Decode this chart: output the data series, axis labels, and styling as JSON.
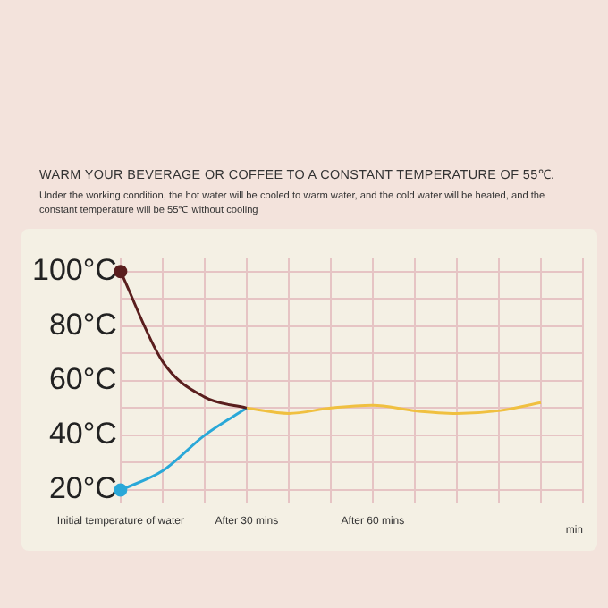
{
  "chart_data": {
    "type": "line",
    "title": "WARM YOUR BEVERAGE OR COFFEE TO A CONSTANT TEMPERATURE OF 55℃.",
    "subtitle": "Under the working condition, the hot water will be cooled to warm water, and the cold water will be heated, and the constant temperature will be 55℃ without cooling",
    "xlabel": "min",
    "categories": [
      "Initial temperature of water",
      null,
      null,
      "After 30 mins",
      null,
      null,
      "After 60 mins",
      null,
      null,
      null,
      null,
      null
    ],
    "series": [
      {
        "color": "#5a1e1e",
        "values": [
          100,
          67,
          54,
          50,
          null,
          null,
          null,
          null,
          null,
          null,
          null,
          null
        ]
      },
      {
        "color": "#2aa8d8",
        "values": [
          20,
          27,
          40,
          50,
          null,
          null,
          null,
          null,
          null,
          null,
          null,
          null
        ]
      },
      {
        "color": "#f0c040",
        "values": [
          null,
          null,
          null,
          50,
          48,
          50,
          51,
          49,
          48,
          49,
          52,
          null
        ]
      },
      {
        "type": "scatter",
        "color": "#5a1e1e",
        "marker": "circle",
        "values": [
          100,
          null,
          null,
          null,
          null,
          null,
          null,
          null,
          null,
          null,
          null,
          null
        ]
      },
      {
        "type": "scatter",
        "color": "#2aa8d8",
        "marker": "circle",
        "values": [
          20,
          null,
          null,
          null,
          null,
          null,
          null,
          null,
          null,
          null,
          null,
          null
        ]
      }
    ],
    "ylim": [
      15,
      105
    ],
    "yticks": [
      {
        "value": 20,
        "label": "20°C"
      },
      {
        "value": 30,
        "label": null
      },
      {
        "value": 40,
        "label": "40°C"
      },
      {
        "value": 50,
        "label": null
      },
      {
        "value": 60,
        "label": "60°C"
      },
      {
        "value": 70,
        "label": null
      },
      {
        "value": 80,
        "label": "80°C"
      },
      {
        "value": 90,
        "label": null
      },
      {
        "value": 100,
        "label": "100°C"
      }
    ],
    "grid": true,
    "legend": false,
    "line_style": "solid"
  }
}
